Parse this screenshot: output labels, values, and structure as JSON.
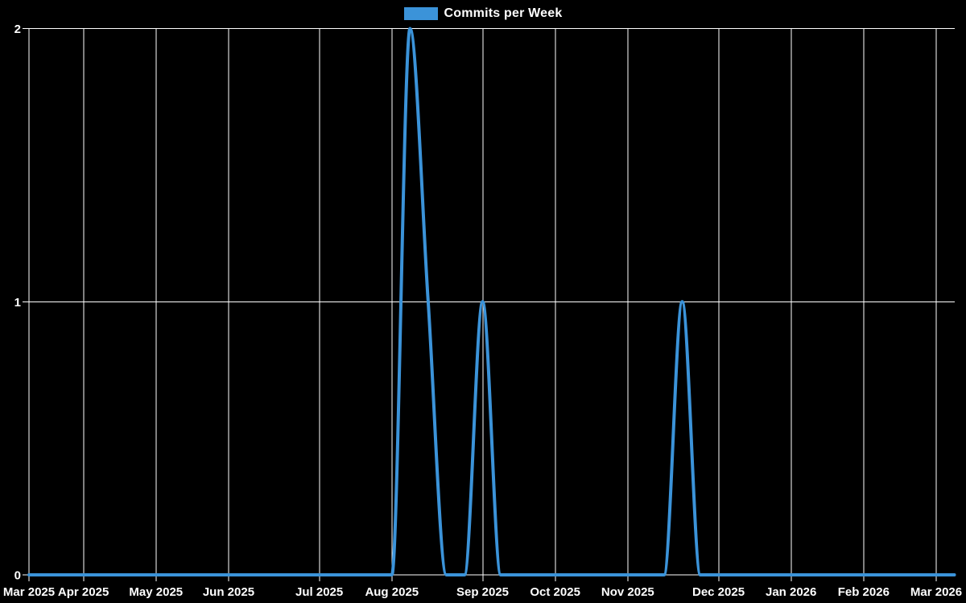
{
  "legend": {
    "label": "Commits per Week"
  },
  "colors": {
    "background": "#000000",
    "line": "#3b93d9",
    "grid": "#ffffff",
    "text": "#ffffff"
  },
  "chart_data": {
    "type": "line",
    "title": "Commits per Week",
    "legend_position": "top-center",
    "grid": "on",
    "x_axis": {
      "unit": "week",
      "weeks_total": 52,
      "tick_labels": [
        "Mar 2025",
        "Apr 2025",
        "May 2025",
        "Jun 2025",
        "Jul 2025",
        "Aug 2025",
        "Sep 2025",
        "Oct 2025",
        "Nov 2025",
        "Dec 2025",
        "Jan 2026",
        "Feb 2026",
        "Mar 2026"
      ],
      "tick_week_indices": [
        0,
        3,
        7,
        11,
        16,
        20,
        25,
        29,
        33,
        38,
        42,
        46,
        50
      ]
    },
    "y_axis": {
      "tick_labels": [
        "0",
        "1",
        "2"
      ],
      "tick_values": [
        0,
        1,
        2
      ],
      "range": [
        0,
        2
      ]
    },
    "series": [
      {
        "name": "Commits per Week",
        "color": "#3b93d9",
        "weekly_values": [
          0,
          0,
          0,
          0,
          0,
          0,
          0,
          0,
          0,
          0,
          0,
          0,
          0,
          0,
          0,
          0,
          0,
          0,
          0,
          0,
          0,
          2,
          1,
          0,
          0,
          1,
          0,
          0,
          0,
          0,
          0,
          0,
          0,
          0,
          0,
          0,
          1,
          0,
          0,
          0,
          0,
          0,
          0,
          0,
          0,
          0,
          0,
          0,
          0,
          0,
          0,
          0
        ]
      }
    ]
  }
}
